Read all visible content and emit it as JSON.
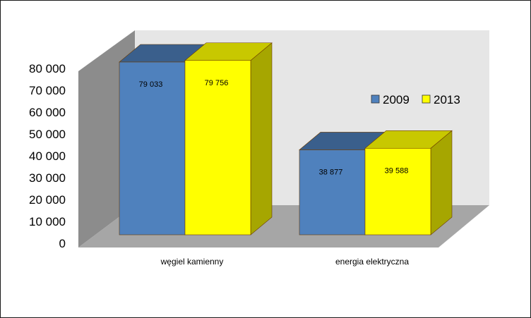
{
  "chart_data": {
    "type": "bar",
    "categories": [
      "węgiel kamienny",
      "energia elektryczna"
    ],
    "series": [
      {
        "name": "2009",
        "values": [
          79033,
          38877
        ],
        "labels": [
          "79 033",
          "38 877"
        ]
      },
      {
        "name": "2013",
        "values": [
          79756,
          39588
        ],
        "labels": [
          "79 756",
          "39 588"
        ]
      }
    ],
    "ylim": [
      0,
      80000
    ],
    "yticks": [
      0,
      10000,
      20000,
      30000,
      40000,
      50000,
      60000,
      70000,
      80000
    ],
    "ytick_labels": [
      "0",
      "10 000",
      "20 000",
      "30 000",
      "40 000",
      "50 000",
      "60 000",
      "70 000",
      "80 000"
    ],
    "style": "3d-clustered-column",
    "legend_position": "right",
    "colors": {
      "2009": {
        "front": "#4f81bd",
        "top": "#3a5f8c",
        "side": "#2f4f78"
      },
      "2013": {
        "front": "#ffff00",
        "top": "#c8c800",
        "side": "#a6a600"
      },
      "back_wall": "#e6e6e6",
      "side_wall": "#8c8c8c",
      "floor": "#a6a6a6"
    }
  }
}
